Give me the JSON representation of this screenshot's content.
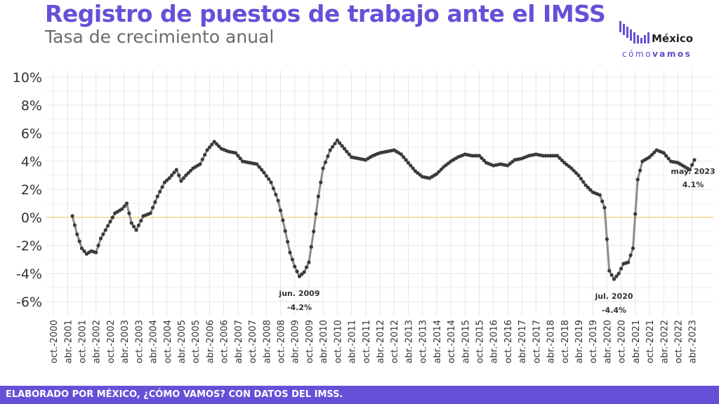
{
  "header": {
    "title": "Registro de puestos de trabajo ante el IMSS",
    "subtitle": "Tasa de crecimiento anual"
  },
  "logo": {
    "name": "México",
    "tagline_plain": "cómo",
    "tagline_bold": "vamos"
  },
  "footer": {
    "source": "ELABORADO POR MÉXICO, ¿CÓMO VAMOS? CON DATOS DEL IMSS."
  },
  "colors": {
    "brand": "#6650d8",
    "line": "#8c8c8c",
    "point": "#3a3a3a",
    "zero_line": "#f5d58a",
    "grid": "#e6e6e6"
  },
  "chart_data": {
    "type": "line",
    "title": "Registro de puestos de trabajo ante el IMSS",
    "subtitle": "Tasa de crecimiento anual",
    "xlabel": "",
    "ylabel": "",
    "ylim": [
      -7,
      10.5
    ],
    "x_range": [
      "2000-10",
      "2023-10"
    ],
    "grid": true,
    "legend": "none",
    "y_ticks": [
      -6,
      -4,
      -2,
      0,
      2,
      4,
      6,
      8,
      10
    ],
    "y_tick_labels": [
      "-6%",
      "-4%",
      "-2%",
      "0%",
      "2%",
      "4%",
      "6%",
      "8%",
      "10%"
    ],
    "x_tick_labels": [
      "oct.-2000",
      "abr.-2001",
      "oct.-2001",
      "abr.-2002",
      "oct.-2002",
      "abr.-2003",
      "oct.-2003",
      "abr.-2004",
      "oct.-2004",
      "abr.-2005",
      "oct.-2005",
      "abr.-2006",
      "oct.-2006",
      "abr.-2007",
      "oct.-2007",
      "abr.-2008",
      "oct.-2008",
      "abr.-2009",
      "oct.-2009",
      "abr.-2010",
      "oct.-2010",
      "abr.-2011",
      "oct.-2011",
      "abr.-2012",
      "oct.-2012",
      "abr.-2013",
      "oct.-2013",
      "abr.-2014",
      "oct.-2014",
      "abr.-2015",
      "oct.-2015",
      "abr.-2016",
      "oct.-2016",
      "abr.-2017",
      "oct.-2017",
      "abr.-2018",
      "oct.-2018",
      "abr.-2019",
      "oct.-2019",
      "abr.-2020",
      "oct.-2020",
      "abr.-2021",
      "oct.-2021",
      "abr.-2022",
      "oct.-2022",
      "abr.-2023"
    ],
    "anchors": [
      [
        "2001-06",
        0.1
      ],
      [
        "2001-08",
        -1.2
      ],
      [
        "2001-10",
        -2.2
      ],
      [
        "2001-12",
        -2.6
      ],
      [
        "2002-02",
        -2.4
      ],
      [
        "2002-04",
        -2.5
      ],
      [
        "2002-06",
        -1.5
      ],
      [
        "2002-09",
        -0.6
      ],
      [
        "2002-12",
        0.3
      ],
      [
        "2003-03",
        0.6
      ],
      [
        "2003-05",
        1.0
      ],
      [
        "2003-07",
        -0.4
      ],
      [
        "2003-09",
        -0.9
      ],
      [
        "2003-12",
        0.1
      ],
      [
        "2004-03",
        0.3
      ],
      [
        "2004-06",
        1.5
      ],
      [
        "2004-09",
        2.5
      ],
      [
        "2004-11",
        2.8
      ],
      [
        "2005-02",
        3.4
      ],
      [
        "2005-04",
        2.6
      ],
      [
        "2005-06",
        3.0
      ],
      [
        "2005-09",
        3.5
      ],
      [
        "2005-12",
        3.8
      ],
      [
        "2006-03",
        4.8
      ],
      [
        "2006-06",
        5.4
      ],
      [
        "2006-09",
        4.9
      ],
      [
        "2006-12",
        4.7
      ],
      [
        "2007-03",
        4.6
      ],
      [
        "2007-06",
        4.0
      ],
      [
        "2007-09",
        3.9
      ],
      [
        "2007-12",
        3.8
      ],
      [
        "2008-03",
        3.2
      ],
      [
        "2008-06",
        2.5
      ],
      [
        "2008-09",
        1.2
      ],
      [
        "2008-11",
        -0.2
      ],
      [
        "2009-02",
        -2.5
      ],
      [
        "2009-04",
        -3.5
      ],
      [
        "2009-06",
        -4.2
      ],
      [
        "2009-08",
        -3.9
      ],
      [
        "2009-10",
        -3.2
      ],
      [
        "2009-12",
        -1.0
      ],
      [
        "2010-02",
        1.5
      ],
      [
        "2010-04",
        3.5
      ],
      [
        "2010-07",
        4.8
      ],
      [
        "2010-10",
        5.5
      ],
      [
        "2011-01",
        4.9
      ],
      [
        "2011-04",
        4.3
      ],
      [
        "2011-07",
        4.2
      ],
      [
        "2011-10",
        4.1
      ],
      [
        "2012-01",
        4.4
      ],
      [
        "2012-04",
        4.6
      ],
      [
        "2012-07",
        4.7
      ],
      [
        "2012-10",
        4.8
      ],
      [
        "2013-01",
        4.5
      ],
      [
        "2013-04",
        3.9
      ],
      [
        "2013-07",
        3.3
      ],
      [
        "2013-10",
        2.9
      ],
      [
        "2014-01",
        2.8
      ],
      [
        "2014-04",
        3.1
      ],
      [
        "2014-07",
        3.6
      ],
      [
        "2014-10",
        4.0
      ],
      [
        "2015-01",
        4.3
      ],
      [
        "2015-04",
        4.5
      ],
      [
        "2015-07",
        4.4
      ],
      [
        "2015-10",
        4.4
      ],
      [
        "2016-01",
        3.9
      ],
      [
        "2016-04",
        3.7
      ],
      [
        "2016-07",
        3.8
      ],
      [
        "2016-10",
        3.7
      ],
      [
        "2017-01",
        4.1
      ],
      [
        "2017-04",
        4.2
      ],
      [
        "2017-07",
        4.4
      ],
      [
        "2017-10",
        4.5
      ],
      [
        "2018-01",
        4.4
      ],
      [
        "2018-04",
        4.4
      ],
      [
        "2018-07",
        4.4
      ],
      [
        "2018-10",
        3.9
      ],
      [
        "2019-01",
        3.5
      ],
      [
        "2019-04",
        3.0
      ],
      [
        "2019-07",
        2.3
      ],
      [
        "2019-10",
        1.8
      ],
      [
        "2020-01",
        1.6
      ],
      [
        "2020-03",
        0.7
      ],
      [
        "2020-05",
        -3.8
      ],
      [
        "2020-07",
        -4.4
      ],
      [
        "2020-09",
        -4.0
      ],
      [
        "2020-11",
        -3.3
      ],
      [
        "2021-01",
        -3.2
      ],
      [
        "2021-03",
        -2.2
      ],
      [
        "2021-05",
        2.7
      ],
      [
        "2021-07",
        4.0
      ],
      [
        "2021-10",
        4.3
      ],
      [
        "2022-01",
        4.8
      ],
      [
        "2022-04",
        4.6
      ],
      [
        "2022-07",
        4.0
      ],
      [
        "2022-10",
        3.9
      ],
      [
        "2023-01",
        3.6
      ],
      [
        "2023-03",
        3.4
      ],
      [
        "2023-05",
        4.1
      ]
    ],
    "annotations": [
      {
        "date": "2009-06",
        "value": -4.2,
        "label": "jun. 2009",
        "value_label": "-4.2%"
      },
      {
        "date": "2020-07",
        "value": -4.4,
        "label": "jul. 2020",
        "value_label": "-4.4%"
      },
      {
        "date": "2023-05",
        "value": 4.1,
        "label": "may. 2023",
        "value_label": "4.1%"
      }
    ]
  }
}
